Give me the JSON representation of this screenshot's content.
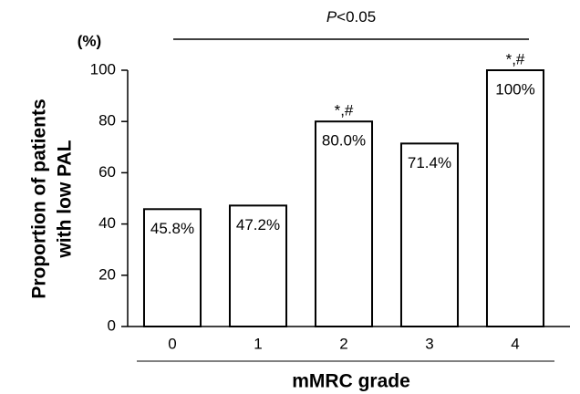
{
  "chart_data": {
    "type": "bar",
    "y_unit": "(%)",
    "y_label": [
      "Proportion of patients",
      "with low PAL"
    ],
    "x_label": "mMRC grade",
    "significance": {
      "symbol": "P",
      "text": "<0.05"
    },
    "categories": [
      "0",
      "1",
      "2",
      "3",
      "4"
    ],
    "values": [
      45.8,
      47.2,
      80.0,
      71.4,
      100
    ],
    "value_labels": [
      "45.8%",
      "47.2%",
      "80.0%",
      "71.4%",
      "100%"
    ],
    "markers": [
      null,
      null,
      "*,#",
      null,
      "*,#"
    ],
    "color": "#ffffff",
    "ylim": [
      0,
      100
    ],
    "yticks": [
      0,
      20,
      40,
      60,
      80,
      100
    ],
    "grid": false
  }
}
